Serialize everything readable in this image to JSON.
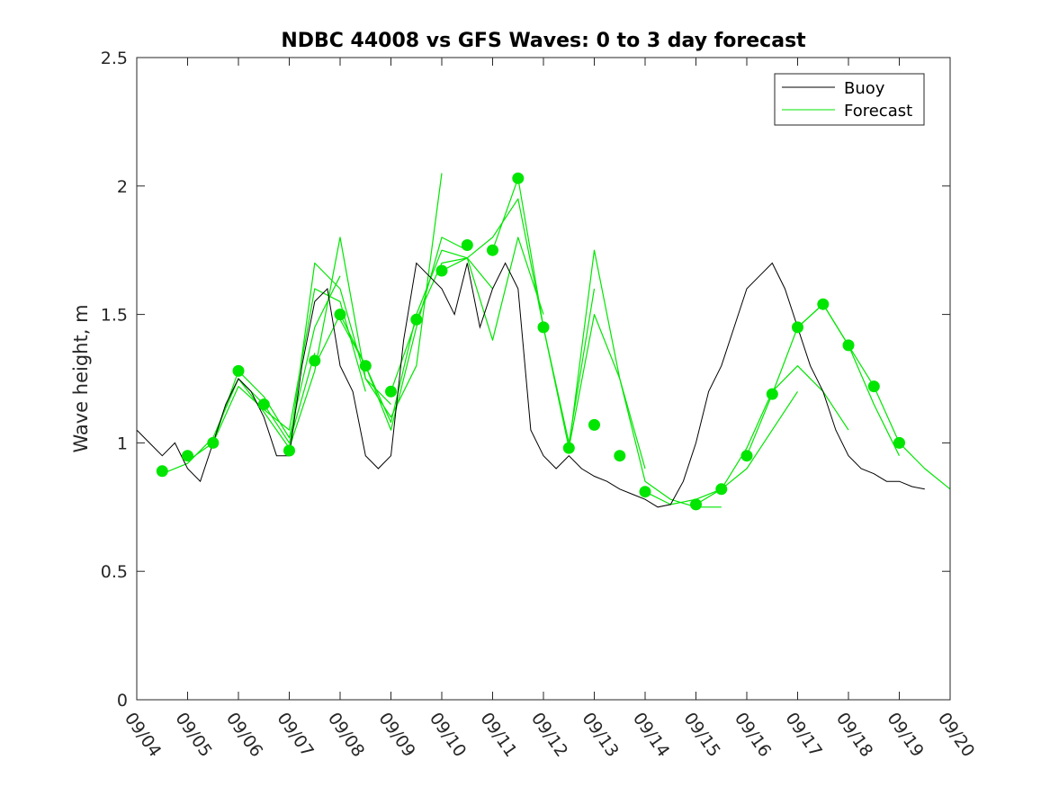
{
  "chart_data": {
    "type": "line",
    "title": "NDBC 44008 vs GFS Waves: 0 to 3 day forecast",
    "xlabel": "",
    "ylabel": "Wave height, m",
    "xlim": [
      0,
      16
    ],
    "ylim": [
      0,
      2.5
    ],
    "x_ticks": [
      0,
      1,
      2,
      3,
      4,
      5,
      6,
      7,
      8,
      9,
      10,
      11,
      12,
      13,
      14,
      15,
      16
    ],
    "x_tick_labels": [
      "09/04",
      "09/05",
      "09/06",
      "09/07",
      "09/08",
      "09/09",
      "09/10",
      "09/11",
      "09/12",
      "09/13",
      "09/14",
      "09/15",
      "09/16",
      "09/17",
      "09/18",
      "09/19",
      "09/20"
    ],
    "y_ticks": [
      0,
      0.5,
      1,
      1.5,
      2,
      2.5
    ],
    "y_tick_labels": [
      "0",
      "0.5",
      "1",
      "1.5",
      "2",
      "2.5"
    ],
    "legend": {
      "position": "top-right",
      "entries": [
        {
          "label": "Buoy",
          "color": "#000000"
        },
        {
          "label": "Forecast",
          "color": "#00e600"
        }
      ]
    },
    "colors": {
      "buoy": "#000000",
      "forecast": "#00e600",
      "marker": "#00e600",
      "axis": "#262626"
    },
    "series": [
      {
        "name": "Buoy",
        "x": [
          0.0,
          0.25,
          0.5,
          0.75,
          1.0,
          1.25,
          1.5,
          1.75,
          2.0,
          2.25,
          2.5,
          2.75,
          3.0,
          3.25,
          3.5,
          3.75,
          4.0,
          4.25,
          4.5,
          4.75,
          5.0,
          5.25,
          5.5,
          5.75,
          6.0,
          6.25,
          6.5,
          6.75,
          7.0,
          7.25,
          7.5,
          7.75,
          8.0,
          8.25,
          8.5,
          8.75,
          9.0,
          9.25,
          9.5,
          9.75,
          10.0,
          10.25,
          10.5,
          10.75,
          11.0,
          11.25,
          11.5,
          11.75,
          12.0,
          12.25,
          12.5,
          12.75,
          13.0,
          13.25,
          13.5,
          13.75,
          14.0,
          14.25,
          14.5,
          14.75,
          15.0,
          15.25,
          15.5
        ],
        "values": [
          1.05,
          1.0,
          0.95,
          1.0,
          0.9,
          0.85,
          1.0,
          1.15,
          1.25,
          1.2,
          1.1,
          0.95,
          0.95,
          1.3,
          1.55,
          1.6,
          1.3,
          1.2,
          0.95,
          0.9,
          0.95,
          1.4,
          1.7,
          1.65,
          1.6,
          1.5,
          1.7,
          1.45,
          1.6,
          1.7,
          1.6,
          1.05,
          0.95,
          0.9,
          0.95,
          0.9,
          0.87,
          0.85,
          0.82,
          0.8,
          0.78,
          0.75,
          0.76,
          0.85,
          1.0,
          1.2,
          1.3,
          1.45,
          1.6,
          1.65,
          1.7,
          1.6,
          1.45,
          1.3,
          1.2,
          1.05,
          0.95,
          0.9,
          0.88,
          0.85,
          0.85,
          0.83,
          0.82
        ]
      }
    ],
    "forecast_runs": [
      {
        "name": "Forecast run 1",
        "x": [
          0.5,
          1.0,
          1.5,
          2.0,
          2.5,
          3.0,
          3.5
        ],
        "values": [
          0.88,
          0.92,
          1.02,
          1.25,
          1.15,
          1.0,
          1.35
        ]
      },
      {
        "name": "Forecast run 2",
        "x": [
          1.0,
          1.5,
          2.0,
          2.5,
          3.0,
          3.5,
          4.0
        ],
        "values": [
          0.93,
          1.0,
          1.28,
          1.18,
          1.02,
          1.45,
          1.65
        ]
      },
      {
        "name": "Forecast run 3",
        "x": [
          1.5,
          2.0,
          2.5,
          3.0,
          3.5,
          4.0,
          4.5
        ],
        "values": [
          1.0,
          1.22,
          1.13,
          1.05,
          1.6,
          1.55,
          1.2
        ]
      },
      {
        "name": "Forecast run 4",
        "x": [
          2.0,
          2.5,
          3.0,
          3.5,
          4.0,
          4.5,
          5.0
        ],
        "values": [
          1.25,
          1.12,
          0.98,
          1.7,
          1.6,
          1.25,
          1.15
        ]
      },
      {
        "name": "Forecast run 5",
        "x": [
          3.0,
          3.5,
          4.0,
          4.5,
          5.0,
          5.5,
          6.0
        ],
        "values": [
          0.98,
          1.28,
          1.8,
          1.25,
          1.1,
          1.3,
          2.05
        ]
      },
      {
        "name": "Forecast run 6",
        "x": [
          3.5,
          4.0,
          4.5,
          5.0,
          5.5,
          6.0,
          6.5
        ],
        "values": [
          1.3,
          1.5,
          1.3,
          1.05,
          1.45,
          1.8,
          1.75
        ]
      },
      {
        "name": "Forecast run 7",
        "x": [
          4.0,
          4.5,
          5.0,
          5.5,
          6.0,
          6.5,
          7.0
        ],
        "values": [
          1.48,
          1.3,
          1.08,
          1.5,
          1.75,
          1.72,
          1.6
        ]
      },
      {
        "name": "Forecast run 8",
        "x": [
          5.0,
          5.5,
          6.0,
          6.5,
          7.0,
          7.5,
          8.0
        ],
        "values": [
          1.2,
          1.48,
          1.7,
          1.72,
          1.4,
          1.8,
          1.5
        ]
      },
      {
        "name": "Forecast run 9",
        "x": [
          6.0,
          6.5,
          7.0,
          7.5,
          8.0,
          8.5,
          9.0
        ],
        "values": [
          1.67,
          1.72,
          1.8,
          1.95,
          1.45,
          1.0,
          1.6
        ]
      },
      {
        "name": "Forecast run 10",
        "x": [
          7.0,
          7.5,
          8.0,
          8.5,
          9.0,
          9.5,
          10.0
        ],
        "values": [
          1.75,
          2.03,
          1.45,
          0.98,
          1.75,
          1.25,
          0.9
        ]
      },
      {
        "name": "Forecast run 11",
        "x": [
          8.5,
          9.0,
          9.5,
          10.0,
          10.5,
          11.0,
          11.5
        ],
        "values": [
          0.98,
          1.5,
          1.25,
          0.85,
          0.78,
          0.75,
          0.75
        ]
      },
      {
        "name": "Forecast run 12",
        "x": [
          10.0,
          10.5,
          11.0,
          11.5,
          12.0,
          12.5,
          13.0
        ],
        "values": [
          0.81,
          0.76,
          0.78,
          0.82,
          0.9,
          1.05,
          1.2
        ]
      },
      {
        "name": "Forecast run 13",
        "x": [
          11.0,
          11.5,
          12.0,
          12.5,
          13.0,
          13.5,
          14.0
        ],
        "values": [
          0.76,
          0.82,
          0.98,
          1.2,
          1.3,
          1.2,
          1.05
        ]
      },
      {
        "name": "Forecast run 14",
        "x": [
          12.0,
          12.5,
          13.0,
          13.5,
          14.0,
          14.5,
          15.0
        ],
        "values": [
          0.95,
          1.19,
          1.45,
          1.54,
          1.38,
          1.15,
          0.95
        ]
      },
      {
        "name": "Forecast run 15",
        "x": [
          13.0,
          13.5,
          14.0,
          14.5,
          15.0,
          15.5,
          16.0
        ],
        "values": [
          1.45,
          1.54,
          1.38,
          1.22,
          1.0,
          0.9,
          0.82
        ]
      }
    ],
    "markers": {
      "name": "Forecast analysis points",
      "x": [
        0.5,
        1.0,
        1.5,
        2.0,
        2.5,
        3.0,
        3.5,
        4.0,
        4.5,
        5.0,
        5.5,
        6.0,
        6.5,
        7.0,
        7.5,
        8.0,
        8.5,
        9.0,
        9.5,
        10.0,
        11.0,
        11.5,
        12.0,
        12.5,
        13.0,
        13.5,
        14.0,
        14.5,
        15.0
      ],
      "values": [
        0.89,
        0.95,
        1.0,
        1.28,
        1.15,
        0.97,
        1.32,
        1.5,
        1.3,
        1.2,
        1.48,
        1.67,
        1.77,
        1.75,
        2.03,
        1.45,
        0.98,
        1.07,
        0.95,
        0.81,
        0.76,
        0.82,
        0.95,
        1.19,
        1.45,
        1.54,
        1.38,
        1.22,
        1.0
      ]
    }
  }
}
